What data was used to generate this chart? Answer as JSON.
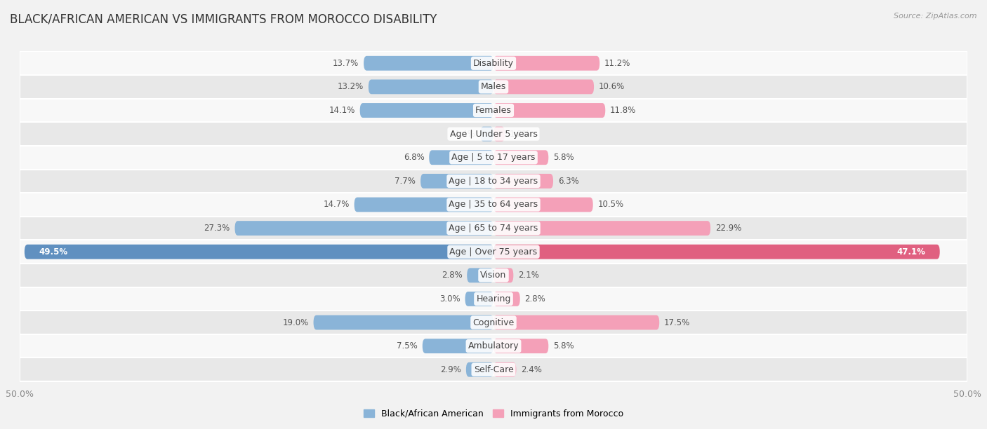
{
  "title": "BLACK/AFRICAN AMERICAN VS IMMIGRANTS FROM MOROCCO DISABILITY",
  "source": "Source: ZipAtlas.com",
  "categories": [
    "Disability",
    "Males",
    "Females",
    "Age | Under 5 years",
    "Age | 5 to 17 years",
    "Age | 18 to 34 years",
    "Age | 35 to 64 years",
    "Age | 65 to 74 years",
    "Age | Over 75 years",
    "Vision",
    "Hearing",
    "Cognitive",
    "Ambulatory",
    "Self-Care"
  ],
  "left_values": [
    13.7,
    13.2,
    14.1,
    1.4,
    6.8,
    7.7,
    14.7,
    27.3,
    49.5,
    2.8,
    3.0,
    19.0,
    7.5,
    2.9
  ],
  "right_values": [
    11.2,
    10.6,
    11.8,
    1.2,
    5.8,
    6.3,
    10.5,
    22.9,
    47.1,
    2.1,
    2.8,
    17.5,
    5.8,
    2.4
  ],
  "left_color": "#8ab4d8",
  "right_color": "#f4a0b8",
  "left_label": "Black/African American",
  "right_label": "Immigrants from Morocco",
  "max_value": 50.0,
  "background_color": "#f2f2f2",
  "row_bg_even": "#f8f8f8",
  "row_bg_odd": "#e8e8e8",
  "title_fontsize": 12,
  "label_fontsize": 9,
  "value_fontsize": 8.5,
  "over75_left_color": "#6090c0",
  "over75_right_color": "#e06080"
}
